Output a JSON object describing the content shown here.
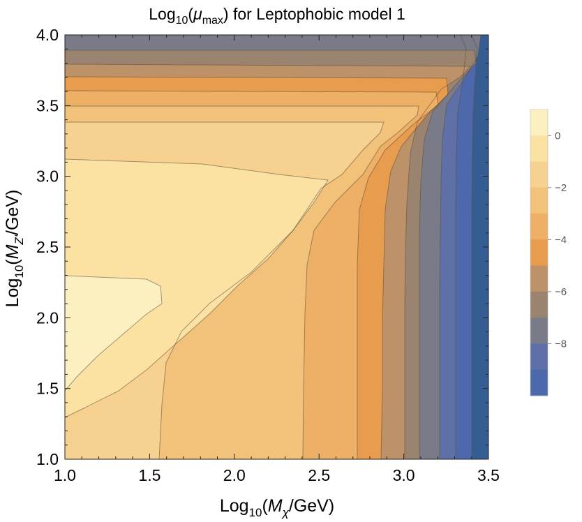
{
  "chart_data": {
    "type": "contour",
    "title": {
      "prefix": "Log",
      "sub": "10",
      "open": "(",
      "mu": "μ",
      "mu_sub": "max",
      "rest": ") for Leptophobic model 1"
    },
    "xlabel": {
      "prefix": "Log",
      "sub": "10",
      "open": "(",
      "var": "M",
      "var_sub": "χ",
      "rest": "/GeV)"
    },
    "ylabel": {
      "prefix": "Log",
      "sub": "10",
      "open": "(",
      "var": "M",
      "var_sub": "Z'",
      "rest": "/GeV)"
    },
    "xlim": [
      1.0,
      3.5
    ],
    "ylim": [
      1.0,
      4.0
    ],
    "xticks": [
      1.0,
      1.5,
      2.0,
      2.5,
      3.0,
      3.5
    ],
    "xtick_labels": [
      "1.0",
      "1.5",
      "2.0",
      "2.5",
      "3.0",
      "3.5"
    ],
    "yticks": [
      1.0,
      1.5,
      2.0,
      2.5,
      3.0,
      3.5,
      4.0
    ],
    "ytick_labels": [
      "1.0",
      "1.5",
      "2.0",
      "2.5",
      "3.0",
      "3.5",
      "4.0"
    ],
    "contour_levels": [
      1,
      0,
      -1,
      -2,
      -3,
      -4,
      -5,
      -6,
      -7,
      -8,
      -9,
      -10
    ],
    "level_colors": [
      "#FCF0C0",
      "#FBE2A3",
      "#F6D190",
      "#F2C17A",
      "#EEAF66",
      "#E89C4E",
      "#BE9269",
      "#9A8470",
      "#7A7B88",
      "#5F70A8",
      "#4E69AB",
      "#365D92"
    ],
    "colorbar": {
      "range": [
        -10,
        1
      ],
      "ticks": [
        0,
        -2,
        -4,
        -6,
        -8
      ],
      "tick_labels": [
        "0",
        "−2",
        "−4",
        "−6",
        "−8"
      ]
    },
    "notes": "Log10 of maximum signal strength; highest (~0.5) at low M_chi and M_Z' ~ 2.1, dropping to below -9 near Log10(M_chi/GeV)=3.5."
  }
}
